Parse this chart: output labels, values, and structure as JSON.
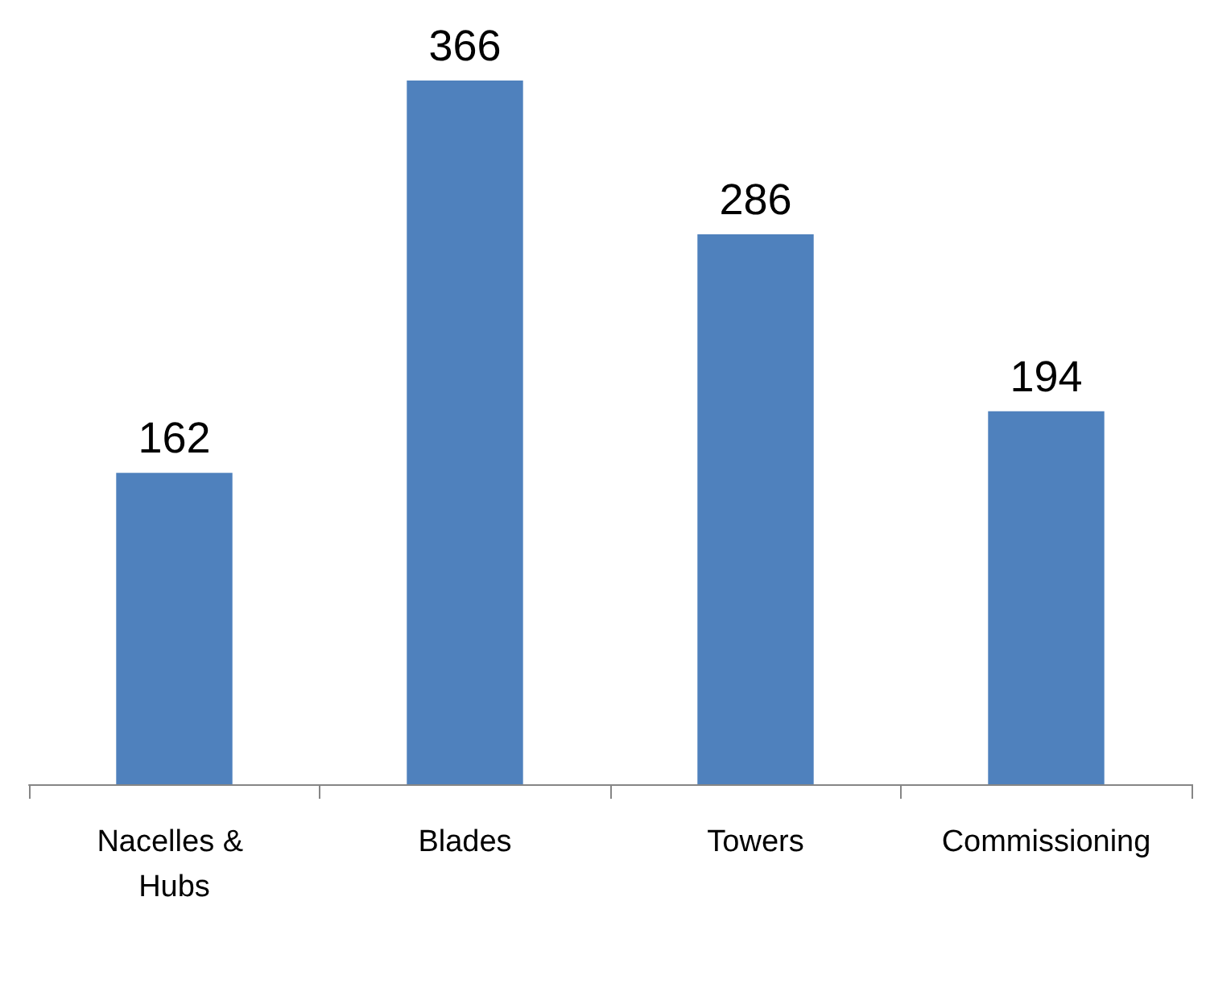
{
  "chart_data": {
    "type": "bar",
    "categories": [
      "Nacelles & Hubs",
      "Blades",
      "Towers",
      "Commissioning"
    ],
    "values": [
      162,
      366,
      286,
      194
    ],
    "color": "#4f81bd",
    "data_labels": true
  }
}
